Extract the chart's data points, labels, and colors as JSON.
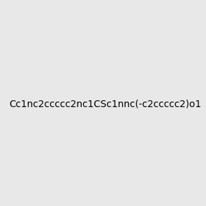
{
  "smiles": "Cc1nc2ccccc2nc1CSc1nnc(-c2ccccc2)o1",
  "title": "",
  "background_color": "#e8e8e8",
  "bond_color": "#000000",
  "atom_colors": {
    "N": "#0000ff",
    "O": "#ff0000",
    "S": "#cccc00",
    "C": "#000000"
  },
  "figsize": [
    3.0,
    3.0
  ],
  "dpi": 100
}
